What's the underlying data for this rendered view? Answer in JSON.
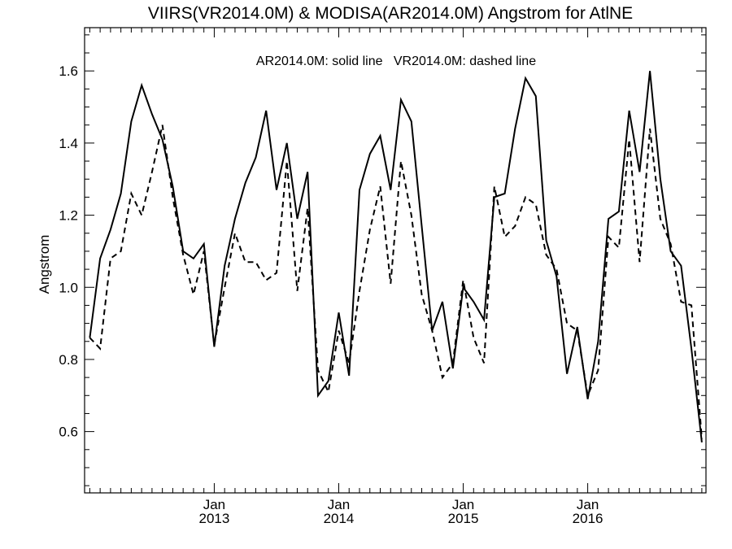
{
  "chart_data": {
    "type": "line",
    "title": "VIIRS(VR2014.0M) & MODISA(AR2014.0M)  Angstrom for AtlNE",
    "annotation": "AR2014.0M: solid line   VR2014.0M: dashed line",
    "xlabel": "",
    "ylabel": "Angstrom",
    "xlim": [
      "2012-01",
      "2016-12"
    ],
    "ylim": [
      0.43,
      1.72
    ],
    "y_ticks": [
      0.6,
      0.8,
      1.0,
      1.2,
      1.4,
      1.6
    ],
    "y_tick_labels": [
      "0.6",
      "0.8",
      "1.0",
      "1.2",
      "1.4",
      "1.6"
    ],
    "x_major_ticks": [
      {
        "month": "2013-01",
        "line1": "Jan",
        "line2": "2013"
      },
      {
        "month": "2014-01",
        "line1": "Jan",
        "line2": "2014"
      },
      {
        "month": "2015-01",
        "line1": "Jan",
        "line2": "2015"
      },
      {
        "month": "2016-01",
        "line1": "Jan",
        "line2": "2016"
      }
    ],
    "grid": false,
    "x": [
      "2012-01",
      "2012-02",
      "2012-03",
      "2012-04",
      "2012-05",
      "2012-06",
      "2012-07",
      "2012-08",
      "2012-09",
      "2012-10",
      "2012-11",
      "2012-12",
      "2013-01",
      "2013-02",
      "2013-03",
      "2013-04",
      "2013-05",
      "2013-06",
      "2013-07",
      "2013-08",
      "2013-09",
      "2013-10",
      "2013-11",
      "2013-12",
      "2014-01",
      "2014-02",
      "2014-03",
      "2014-04",
      "2014-05",
      "2014-06",
      "2014-07",
      "2014-08",
      "2014-09",
      "2014-10",
      "2014-11",
      "2014-12",
      "2015-01",
      "2015-02",
      "2015-03",
      "2015-04",
      "2015-05",
      "2015-06",
      "2015-07",
      "2015-08",
      "2015-09",
      "2015-10",
      "2015-11",
      "2015-12",
      "2016-01",
      "2016-02",
      "2016-03",
      "2016-04",
      "2016-05",
      "2016-06",
      "2016-07",
      "2016-08",
      "2016-09",
      "2016-10",
      "2016-11",
      "2016-12"
    ],
    "series": [
      {
        "name": "AR2014.0M",
        "style": "solid",
        "color": "#000000",
        "values": [
          0.86,
          1.08,
          1.16,
          1.26,
          1.46,
          1.56,
          1.48,
          1.41,
          1.28,
          1.1,
          1.08,
          1.12,
          0.835,
          1.06,
          1.19,
          1.29,
          1.36,
          1.49,
          1.27,
          1.4,
          1.19,
          1.32,
          0.7,
          0.74,
          0.93,
          0.755,
          1.27,
          1.37,
          1.42,
          1.27,
          1.52,
          1.46,
          1.17,
          0.88,
          0.96,
          0.775,
          1.0,
          0.96,
          0.91,
          1.25,
          1.26,
          1.44,
          1.58,
          1.53,
          1.13,
          1.03,
          0.76,
          0.89,
          0.69,
          0.85,
          1.19,
          1.21,
          1.49,
          1.32,
          1.6,
          1.3,
          1.1,
          1.06,
          0.83,
          0.57
        ]
      },
      {
        "name": "VR2014.0M",
        "style": "dashed",
        "color": "#000000",
        "values": [
          0.86,
          0.83,
          1.08,
          1.1,
          1.26,
          1.2,
          1.32,
          1.45,
          1.25,
          1.09,
          0.98,
          1.1,
          0.84,
          1.0,
          1.15,
          1.07,
          1.07,
          1.02,
          1.04,
          1.35,
          0.99,
          1.22,
          0.77,
          0.71,
          0.88,
          0.79,
          0.99,
          1.16,
          1.28,
          1.01,
          1.35,
          1.2,
          0.98,
          0.88,
          0.75,
          0.79,
          1.02,
          0.86,
          0.79,
          1.28,
          1.14,
          1.17,
          1.25,
          1.23,
          1.09,
          1.05,
          0.9,
          0.88,
          0.7,
          0.77,
          1.14,
          1.11,
          1.41,
          1.07,
          1.44,
          1.19,
          1.12,
          0.96,
          0.95,
          0.58
        ]
      }
    ]
  }
}
